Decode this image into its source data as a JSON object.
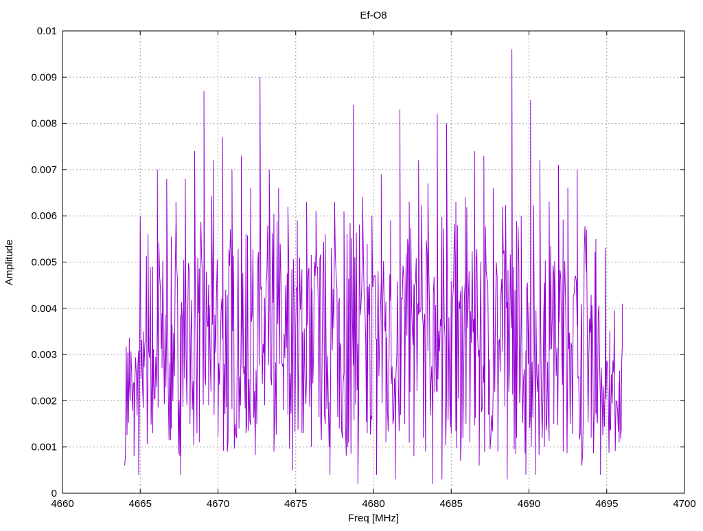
{
  "chart_data": {
    "type": "line",
    "title": "Ef-O8",
    "xlabel": "Freq [MHz]",
    "ylabel": "Amplitude",
    "xlim": [
      4660,
      4700
    ],
    "ylim": [
      0,
      0.01
    ],
    "x_ticks": [
      4660,
      4665,
      4670,
      4675,
      4680,
      4685,
      4690,
      4695,
      4700
    ],
    "x_tick_labels": [
      "4660",
      "4665",
      "4670",
      "4675",
      "4680",
      "4685",
      "4690",
      "4695",
      "4700"
    ],
    "y_ticks": [
      0,
      0.001,
      0.002,
      0.003,
      0.004,
      0.005,
      0.006,
      0.007,
      0.008,
      0.009,
      0.01
    ],
    "y_tick_labels": [
      "0",
      "0.001",
      "0.002",
      "0.003",
      "0.004",
      "0.005",
      "0.006",
      "0.007",
      "0.008",
      "0.009",
      "0.01"
    ],
    "grid": true,
    "legend": "none",
    "series": [
      {
        "color": "#9400d3",
        "x": [
          4664.0,
          4664.3,
          4664.6,
          4664.9,
          4665.2,
          4665.5,
          4665.8,
          4666.1,
          4666.4,
          4666.7,
          4667.0,
          4667.3,
          4667.6,
          4667.9,
          4668.2,
          4668.5,
          4668.8,
          4669.1,
          4669.4,
          4669.7,
          4670.0,
          4670.3,
          4670.6,
          4670.9,
          4671.2,
          4671.5,
          4671.8,
          4672.1,
          4672.4,
          4672.7,
          4673.0,
          4673.3,
          4673.6,
          4673.9,
          4674.2,
          4674.5,
          4674.8,
          4675.1,
          4675.4,
          4675.7,
          4676.0,
          4676.3,
          4676.6,
          4676.9,
          4677.2,
          4677.5,
          4677.8,
          4678.1,
          4678.4,
          4678.7,
          4679.0,
          4679.3,
          4679.6,
          4679.9,
          4680.2,
          4680.5,
          4680.8,
          4681.1,
          4681.4,
          4681.7,
          4682.0,
          4682.3,
          4682.6,
          4682.9,
          4683.2,
          4683.5,
          4683.8,
          4684.1,
          4684.4,
          4684.7,
          4685.0,
          4685.3,
          4685.6,
          4685.9,
          4686.2,
          4686.5,
          4686.8,
          4687.1,
          4687.4,
          4687.7,
          4688.0,
          4688.3,
          4688.6,
          4688.9,
          4689.2,
          4689.5,
          4689.8,
          4690.1,
          4690.4,
          4690.7,
          4691.0,
          4691.3,
          4691.6,
          4691.9,
          4692.2,
          4692.5,
          4692.8,
          4693.1,
          4693.4,
          4693.7,
          4694.0,
          4694.3,
          4694.6,
          4694.9,
          4695.2,
          4695.5,
          4695.8,
          4696.0
        ],
        "y": [
          0.0006,
          0.0026,
          0.0008,
          0.0004,
          0.0035,
          0.0056,
          0.0013,
          0.007,
          0.0027,
          0.0068,
          0.0014,
          0.0063,
          0.0004,
          0.0068,
          0.0015,
          0.0074,
          0.0011,
          0.0087,
          0.0019,
          0.0072,
          0.0012,
          0.0077,
          0.0009,
          0.007,
          0.0014,
          0.0073,
          0.0013,
          0.0066,
          0.0011,
          0.009,
          0.0019,
          0.007,
          0.0009,
          0.0066,
          0.0018,
          0.0062,
          0.0005,
          0.0059,
          0.0013,
          0.0063,
          0.001,
          0.0061,
          0.0017,
          0.0056,
          0.0004,
          0.0063,
          0.0014,
          0.0061,
          0.0011,
          0.0084,
          0.0002,
          0.0064,
          0.0013,
          0.006,
          0.0004,
          0.0069,
          0.0011,
          0.0059,
          0.0003,
          0.0083,
          0.0015,
          0.0063,
          0.0008,
          0.0072,
          0.0012,
          0.0067,
          0.0002,
          0.0082,
          0.0003,
          0.008,
          0.0013,
          0.0063,
          0.0007,
          0.0064,
          0.0011,
          0.0074,
          0.0006,
          0.0073,
          0.0017,
          0.0066,
          0.0009,
          0.0062,
          0.0003,
          0.0096,
          0.0012,
          0.006,
          0.0004,
          0.0085,
          0.0004,
          0.0072,
          0.001,
          0.0063,
          0.0015,
          0.0071,
          0.0009,
          0.0066,
          0.0014,
          0.007,
          0.0006,
          0.0057,
          0.0012,
          0.0055,
          0.0004,
          0.0053,
          0.0014,
          0.0028,
          0.0011,
          0.0041
        ]
      }
    ]
  }
}
